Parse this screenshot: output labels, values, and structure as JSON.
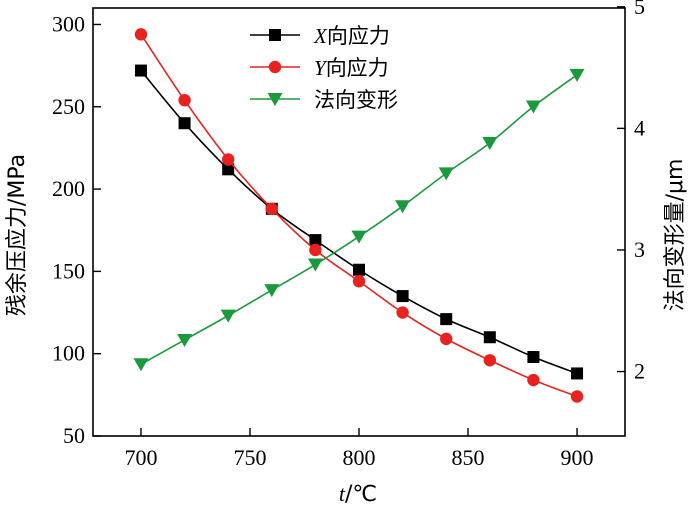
{
  "chart_data": {
    "type": "line",
    "x": [
      700,
      720,
      740,
      760,
      780,
      800,
      820,
      840,
      860,
      880,
      900
    ],
    "xlim": [
      678,
      922
    ],
    "xticks": [
      700,
      750,
      800,
      850,
      900
    ],
    "xlabel_var": "t",
    "xlabel_unit": "/℃",
    "ylabel_left": "残余压应力/MPa",
    "ylim_left": [
      50,
      310
    ],
    "yticks_left": [
      50,
      100,
      150,
      200,
      250,
      300
    ],
    "ylabel_right": "法向变形量/μm",
    "ylim_right": [
      1.47,
      4.99
    ],
    "yticks_right": [
      2,
      3,
      4,
      5
    ],
    "legend_position": "top-center",
    "series": [
      {
        "name_var": "X",
        "name_rest": "向应力",
        "axis": "left",
        "color": "#000000",
        "marker": "square",
        "values": [
          272,
          240,
          212,
          188,
          169,
          151,
          135,
          121,
          110,
          98,
          88
        ]
      },
      {
        "name_var": "Y",
        "name_rest": "向应力",
        "axis": "left",
        "color": "#e8231f",
        "marker": "circle",
        "values": [
          294,
          254,
          218,
          188,
          163,
          144,
          125,
          109,
          96,
          84,
          74
        ]
      },
      {
        "name_var": "",
        "name_rest": "法向变形",
        "axis": "right",
        "color": "#1a9a3c",
        "marker": "triangle-down",
        "values": [
          2.06,
          2.26,
          2.46,
          2.67,
          2.88,
          3.11,
          3.36,
          3.63,
          3.88,
          4.18,
          4.44
        ]
      }
    ]
  }
}
